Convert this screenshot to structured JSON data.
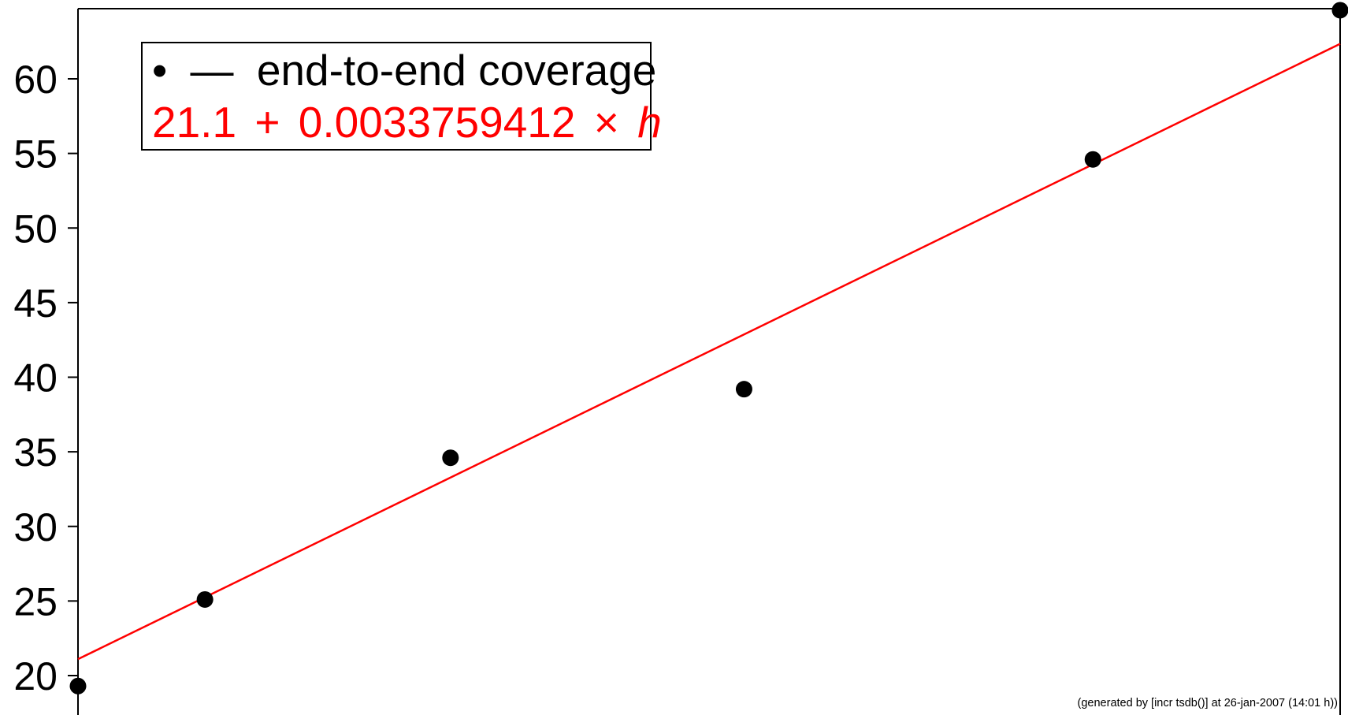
{
  "chart_data": {
    "type": "scatter",
    "ylim": [
      18,
      64
    ],
    "xlim": [
      0,
      12218
    ],
    "yticks": [
      20,
      25,
      30,
      35,
      40,
      45,
      50,
      55,
      60
    ],
    "grid": false,
    "legend_position": "top-left",
    "series": [
      {
        "name": "end-to-end coverage",
        "marker": "circle",
        "color": "#000000",
        "points": [
          {
            "x": 0,
            "y": 19.3
          },
          {
            "x": 1229,
            "y": 25.1
          },
          {
            "x": 3606,
            "y": 34.6
          },
          {
            "x": 6448,
            "y": 39.2
          },
          {
            "x": 9825,
            "y": 54.6
          },
          {
            "x": 12218,
            "y": 64.6
          }
        ]
      }
    ],
    "fit": {
      "color": "#ff0000",
      "intercept": 21.1,
      "slope": 0.0033759412,
      "variable": "h",
      "label_constant": "21.1",
      "label_plus": "+",
      "label_slope": "0.0033759412",
      "label_times": "×",
      "label_variable": "h"
    }
  },
  "legend": {
    "marker_glyph": "•",
    "line_glyph": "—",
    "series_label": "end-to-end coverage"
  },
  "footer": {
    "note": "(generated by [incr tsdb()] at 26-jan-2007 (14:01 h))"
  },
  "colors": {
    "axis": "#000000",
    "points": "#000000",
    "fit_line": "#ff0000"
  }
}
